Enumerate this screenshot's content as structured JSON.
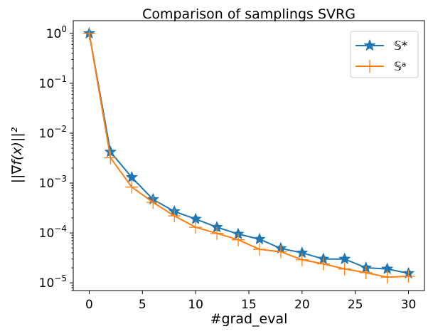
{
  "chart_data": {
    "type": "line",
    "title": "Comparison of samplings SVRG",
    "xlabel": "#grad_eval",
    "ylabel": "||∇f(x)||²",
    "xlim": [
      -1.5,
      31.5
    ],
    "ylim": [
      7e-06,
      1.8
    ],
    "yscale": "log",
    "xticks": [
      0,
      5,
      10,
      15,
      20,
      25,
      30
    ],
    "yticks": [
      {
        "v": 1,
        "m": "10",
        "e": "0"
      },
      {
        "v": 0.1,
        "m": "10",
        "e": "−1"
      },
      {
        "v": 0.01,
        "m": "10",
        "e": "−2"
      },
      {
        "v": 0.001,
        "m": "10",
        "e": "−3"
      },
      {
        "v": 0.0001,
        "m": "10",
        "e": "−4"
      },
      {
        "v": 1e-05,
        "m": "10",
        "e": "−5"
      }
    ],
    "grid": false,
    "legend_position": "top-right",
    "x": [
      0,
      2,
      4,
      6,
      8,
      10,
      12,
      14,
      16,
      18,
      20,
      22,
      24,
      26,
      28,
      30
    ],
    "series": [
      {
        "name": "𝕊*",
        "color": "#1f77b4",
        "marker": "star",
        "values": [
          1,
          0.0042,
          0.0013,
          0.00047,
          0.00027,
          0.00019,
          0.00013,
          9.5e-05,
          7.5e-05,
          4.9e-05,
          4e-05,
          3e-05,
          3e-05,
          2e-05,
          1.9e-05,
          1.55e-05
        ]
      },
      {
        "name": "𝕊ᵃ",
        "color": "#ff7f0e",
        "marker": "plus",
        "values": [
          1,
          0.0032,
          0.00083,
          0.00041,
          0.00022,
          0.00013,
          9.8e-05,
          7.3e-05,
          4.7e-05,
          4.2e-05,
          2.9e-05,
          2.4e-05,
          1.9e-05,
          1.6e-05,
          1.3e-05,
          1.35e-05
        ]
      }
    ]
  }
}
